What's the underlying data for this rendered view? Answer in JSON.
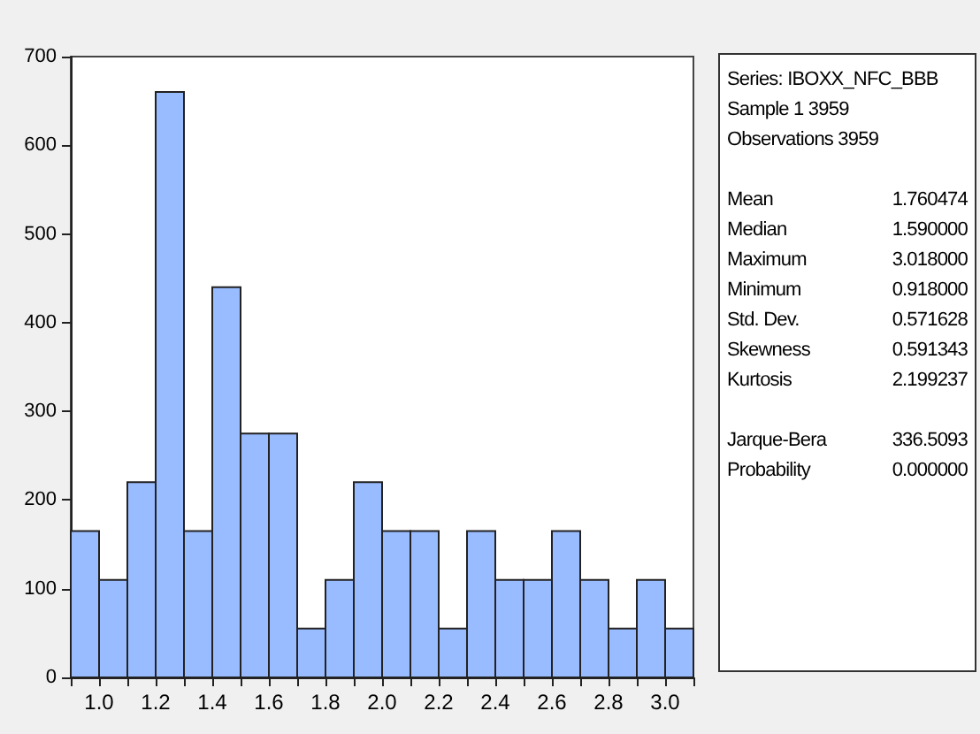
{
  "chart_data": {
    "type": "histogram",
    "bins": [
      0.9,
      1.0,
      1.1,
      1.2,
      1.3,
      1.4,
      1.5,
      1.6,
      1.7,
      1.8,
      1.9,
      2.0,
      2.1,
      2.2,
      2.3,
      2.4,
      2.5,
      2.6,
      2.7,
      2.8,
      2.9,
      3.0,
      3.1
    ],
    "values": [
      165,
      110,
      220,
      660,
      165,
      440,
      275,
      275,
      55,
      110,
      220,
      165,
      165,
      55,
      165,
      110,
      110,
      165,
      110,
      55,
      110,
      55
    ],
    "color": "#99bbff",
    "xlim": [
      0.9,
      3.1
    ],
    "xticks": [
      {
        "value": 0.9,
        "label": null
      },
      {
        "value": 1.0,
        "label": "1.0"
      },
      {
        "value": 1.1,
        "label": null
      },
      1.2,
      {
        "value": 1.3,
        "label": null
      },
      1.4,
      {
        "value": 1.5,
        "label": null
      },
      1.6,
      {
        "value": 1.7,
        "label": null
      },
      1.8,
      {
        "value": 1.9,
        "label": null
      },
      {
        "value": 2.0,
        "label": "2.0"
      },
      {
        "value": 2.1,
        "label": null
      },
      2.2,
      {
        "value": 2.3,
        "label": null
      },
      2.4,
      {
        "value": 2.5,
        "label": null
      },
      2.6,
      {
        "value": 2.7,
        "label": null
      },
      2.8,
      {
        "value": 2.9,
        "label": null
      },
      {
        "value": 3.0,
        "label": "3.0"
      },
      {
        "value": 3.1,
        "label": null
      }
    ],
    "ylim": [
      0,
      700
    ],
    "yticks": [
      0,
      100,
      200,
      300,
      400,
      500,
      600,
      700
    ],
    "grid": false,
    "annotations": [
      "Series: IBOXX_NFC_BBB",
      "Sample 1 3959",
      "Observations 3959",
      "Mean",
      "1.760474",
      "Median",
      "1.590000",
      "Maximum",
      "3.018000",
      "Minimum",
      "0.918000",
      "Std. Dev.",
      "0.571628",
      "Skewness",
      "0.591343",
      "Kurtosis",
      "2.199237",
      "Jarque-Bera",
      "336.5093",
      "Probability",
      "0.000000"
    ]
  }
}
